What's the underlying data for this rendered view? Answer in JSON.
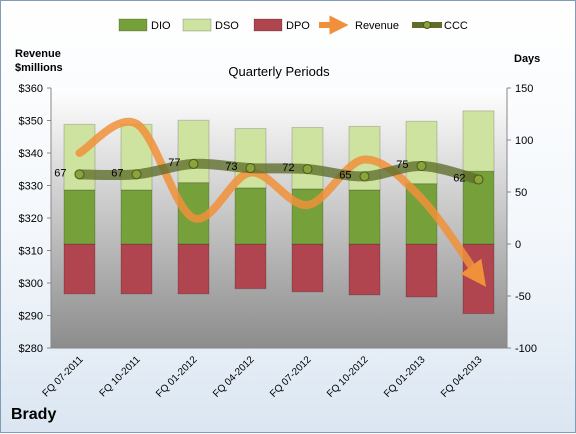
{
  "colors": {
    "dio": "#76a03a",
    "dso": "#cfe3a1",
    "dpo": "#b0454f",
    "revenue": "#f0903a",
    "ccc": "#5e6d2a",
    "plot_top": "#ffffff",
    "plot_bottom": "#8c8c8c"
  },
  "chart_data": {
    "type": "bar",
    "title": "Quarterly Periods",
    "y_left_label_line1": "Revenue",
    "y_left_label_line2": "$millions",
    "y_right_label": "Days",
    "brand": "Brady",
    "categories": [
      "FQ 07-2011",
      "FQ 10-2011",
      "FQ 01-2012",
      "FQ 04-2012",
      "FQ 07-2012",
      "FQ 10-2012",
      "FQ 01-2013",
      "FQ 04-2013"
    ],
    "legend": [
      "DIO",
      "DSO",
      "DPO",
      "Revenue",
      "CCC"
    ],
    "left_axis": {
      "ylim": [
        280,
        360
      ],
      "ticks": [
        "$280",
        "$290",
        "$300",
        "$310",
        "$320",
        "$330",
        "$340",
        "$350",
        "$360"
      ]
    },
    "right_axis": {
      "ylim": [
        -100,
        150
      ],
      "ticks": [
        "-100",
        "-50",
        "0",
        "50",
        "100",
        "150"
      ]
    },
    "series": [
      {
        "name": "DIO",
        "axis": "right",
        "values": [
          52,
          52,
          59,
          54,
          53,
          52,
          58,
          70
        ]
      },
      {
        "name": "DSO",
        "axis": "right",
        "values": [
          63,
          63,
          60,
          57,
          59,
          61,
          60,
          58
        ]
      },
      {
        "name": "DPO",
        "axis": "right",
        "values": [
          -48,
          -48,
          -48,
          -43,
          -46,
          -49,
          -51,
          -67
        ]
      },
      {
        "name": "Revenue",
        "axis": "left",
        "values": [
          340,
          349,
          320,
          334,
          324,
          338,
          326,
          302
        ]
      },
      {
        "name": "CCC",
        "axis": "right",
        "values": [
          67,
          67,
          77,
          73,
          72,
          65,
          75,
          62
        ]
      }
    ],
    "ccc_labels": [
      "67",
      "67",
      "77",
      "73",
      "72",
      "65",
      "75",
      "62"
    ]
  }
}
